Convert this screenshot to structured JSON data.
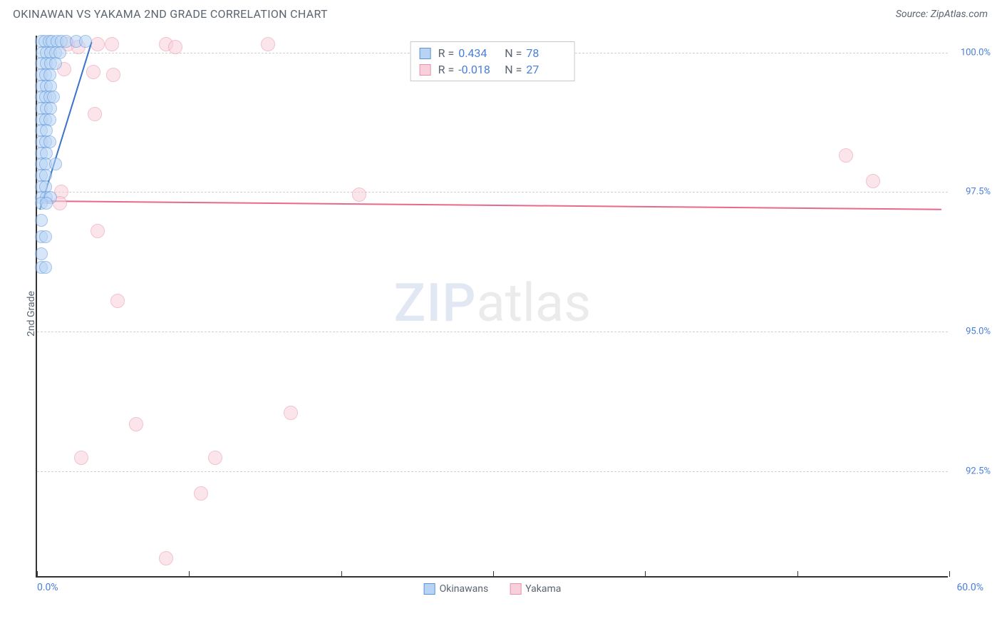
{
  "header": {
    "title": "OKINAWAN VS YAKAMA 2ND GRADE CORRELATION CHART",
    "source": "Source: ZipAtlas.com"
  },
  "chart": {
    "type": "scatter",
    "y_axis_title": "2nd Grade",
    "xlim": [
      0.0,
      60.0
    ],
    "ylim": [
      90.6,
      100.3
    ],
    "x_ticks": [
      0,
      10,
      20,
      30,
      40,
      50,
      60
    ],
    "y_grid": [
      92.5,
      95.0,
      97.5,
      100.0
    ],
    "y_labels": [
      "92.5%",
      "95.0%",
      "97.5%",
      "100.0%"
    ],
    "x_label_min": "0.0%",
    "x_label_max": "60.0%",
    "background_color": "#ffffff",
    "grid_color": "#d0d0d0",
    "axis_color": "#333333",
    "watermark": {
      "zip": "ZIP",
      "atlas": "atlas"
    },
    "series": [
      {
        "name": "Okinawans",
        "fill": "#b8d4f5",
        "stroke": "#5a93d8",
        "fill_opacity": 0.55,
        "marker_radius": 9,
        "R": "0.434",
        "N": "78",
        "trend": {
          "x1": 0.2,
          "y1": 97.2,
          "x2": 3.6,
          "y2": 100.2,
          "color": "#3a73c8"
        },
        "points": [
          [
            0.3,
            100.2
          ],
          [
            0.5,
            100.2
          ],
          [
            0.8,
            100.2
          ],
          [
            1.0,
            100.2
          ],
          [
            1.3,
            100.2
          ],
          [
            1.6,
            100.2
          ],
          [
            1.9,
            100.2
          ],
          [
            2.6,
            100.2
          ],
          [
            3.2,
            100.2
          ],
          [
            0.35,
            100.0
          ],
          [
            0.6,
            100.0
          ],
          [
            0.9,
            100.0
          ],
          [
            1.2,
            100.0
          ],
          [
            1.5,
            100.0
          ],
          [
            0.3,
            99.8
          ],
          [
            0.6,
            99.8
          ],
          [
            0.9,
            99.8
          ],
          [
            1.2,
            99.8
          ],
          [
            0.3,
            99.6
          ],
          [
            0.55,
            99.6
          ],
          [
            0.85,
            99.6
          ],
          [
            0.3,
            99.4
          ],
          [
            0.6,
            99.4
          ],
          [
            0.9,
            99.4
          ],
          [
            0.3,
            99.2
          ],
          [
            0.55,
            99.2
          ],
          [
            0.85,
            99.2
          ],
          [
            1.1,
            99.2
          ],
          [
            0.3,
            99.0
          ],
          [
            0.6,
            99.0
          ],
          [
            0.9,
            99.0
          ],
          [
            0.3,
            98.8
          ],
          [
            0.55,
            98.8
          ],
          [
            0.85,
            98.8
          ],
          [
            0.3,
            98.6
          ],
          [
            0.6,
            98.6
          ],
          [
            0.3,
            98.4
          ],
          [
            0.55,
            98.4
          ],
          [
            0.85,
            98.4
          ],
          [
            0.3,
            98.2
          ],
          [
            0.6,
            98.2
          ],
          [
            0.3,
            98.0
          ],
          [
            0.55,
            98.0
          ],
          [
            1.2,
            98.0
          ],
          [
            0.3,
            97.8
          ],
          [
            0.55,
            97.8
          ],
          [
            0.3,
            97.6
          ],
          [
            0.55,
            97.6
          ],
          [
            0.3,
            97.4
          ],
          [
            0.6,
            97.4
          ],
          [
            0.9,
            97.4
          ],
          [
            0.3,
            97.3
          ],
          [
            0.6,
            97.3
          ],
          [
            0.3,
            97.0
          ],
          [
            0.3,
            96.7
          ],
          [
            0.55,
            96.7
          ],
          [
            0.3,
            96.4
          ],
          [
            0.3,
            96.15
          ],
          [
            0.55,
            96.15
          ]
        ]
      },
      {
        "name": "Yakama",
        "fill": "#f8d0dc",
        "stroke": "#e891ab",
        "fill_opacity": 0.55,
        "marker_radius": 10,
        "R": "-0.018",
        "N": "27",
        "trend": {
          "x1": 0.2,
          "y1": 97.35,
          "x2": 59.5,
          "y2": 97.2,
          "color": "#e86a8a"
        },
        "points": [
          [
            2.0,
            100.15
          ],
          [
            2.7,
            100.1
          ],
          [
            4.0,
            100.15
          ],
          [
            4.9,
            100.15
          ],
          [
            8.5,
            100.15
          ],
          [
            9.1,
            100.1
          ],
          [
            15.2,
            100.15
          ],
          [
            1.8,
            99.7
          ],
          [
            3.7,
            99.65
          ],
          [
            5.0,
            99.6
          ],
          [
            3.8,
            98.9
          ],
          [
            1.6,
            97.5
          ],
          [
            21.2,
            97.45
          ],
          [
            1.5,
            97.3
          ],
          [
            53.2,
            98.15
          ],
          [
            55.0,
            97.7
          ],
          [
            4.0,
            96.8
          ],
          [
            5.3,
            95.55
          ],
          [
            6.5,
            93.35
          ],
          [
            16.7,
            93.55
          ],
          [
            2.9,
            92.75
          ],
          [
            11.7,
            92.75
          ],
          [
            10.8,
            92.1
          ],
          [
            8.5,
            90.95
          ]
        ]
      }
    ],
    "legend_bottom": [
      {
        "label": "Okinawans",
        "fill": "#b8d4f5",
        "stroke": "#5a93d8"
      },
      {
        "label": "Yakama",
        "fill": "#f8d0dc",
        "stroke": "#e891ab"
      }
    ]
  }
}
